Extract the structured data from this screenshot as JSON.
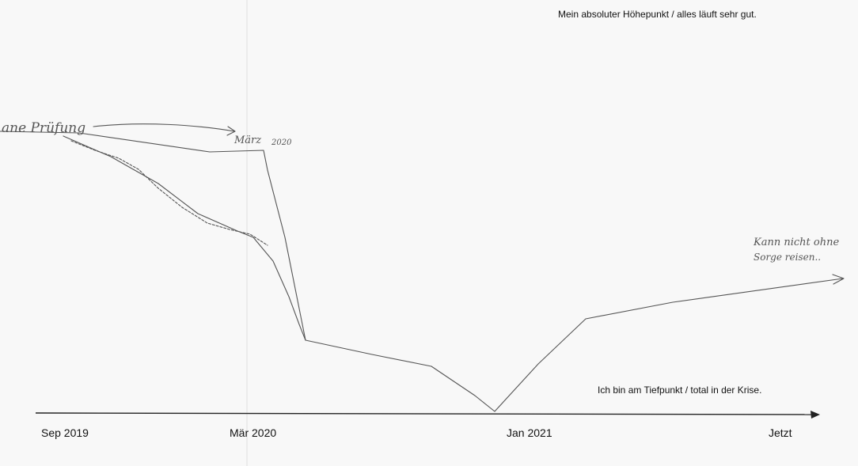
{
  "top_label": "Mein absoluter Höhepunkt / alles läuft sehr gut.",
  "bottom_label": "Ich bin am Tiefpunkt / total in der Krise.",
  "axis_labels": [
    "Sep 2019",
    "Mär 2020",
    "Jan 2021",
    "Jetzt"
  ],
  "annotations": {
    "start": "ane Prüfung",
    "march": "März",
    "march_year": "2020",
    "end_line1": "Kann nicht ohne",
    "end_line2": "Sorge reisen.."
  }
}
